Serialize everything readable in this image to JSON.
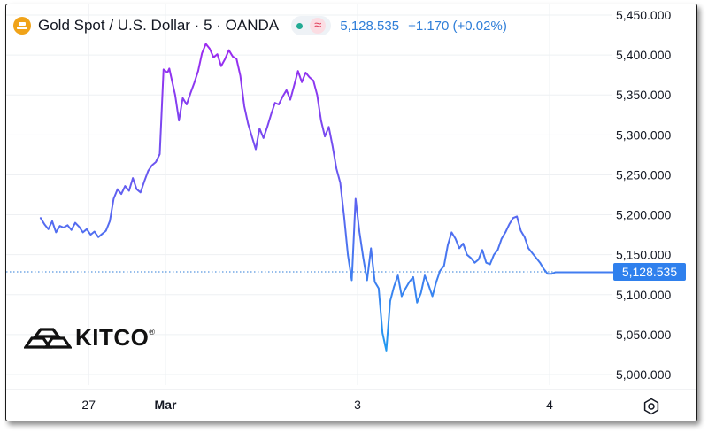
{
  "header": {
    "symbol_icon": "gold-bar-coin-icon",
    "title": "Gold Spot / U.S. Dollar · 5 · OANDA",
    "status_icon": "market-open-dot",
    "indicator_icon": "wave-icon",
    "indicator_symbol": "≈",
    "price": "5,128.535",
    "change": "+1.170 (+0.02%)"
  },
  "logo": {
    "text": "KITCO",
    "registered": "®"
  },
  "colors": {
    "line_top": "#9b2bf0",
    "line_bottom": "#1e9cf0",
    "price_line": "#2f7ed8",
    "price_tag": "#2f80ed",
    "grid": "#eef0f3",
    "axis_text": "#131722"
  },
  "chart_data": {
    "type": "line",
    "title": "Gold Spot / U.S. Dollar · 5 · OANDA",
    "xlabel": "",
    "ylabel": "",
    "ylim": [
      4990,
      5460
    ],
    "grid": true,
    "y_ticks": [
      "5,000.000",
      "5,050.000",
      "5,100.000",
      "5,150.000",
      "5,200.000",
      "5,250.000",
      "5,300.000",
      "5,350.000",
      "5,400.000",
      "5,450.000"
    ],
    "y_tick_values": [
      5000,
      5050,
      5100,
      5150,
      5200,
      5250,
      5300,
      5350,
      5400,
      5450
    ],
    "x_ticks": [
      "27",
      "Mar",
      "3",
      "4"
    ],
    "x_tick_values": [
      0.6,
      1.0,
      2.0,
      3.0
    ],
    "last_price_label": "5,128.535",
    "last_price": 5128.535,
    "x_range": [
      0.35,
      3.66
    ],
    "series": [
      {
        "name": "",
        "x": [
          0.35,
          0.37,
          0.39,
          0.41,
          0.43,
          0.45,
          0.47,
          0.49,
          0.51,
          0.53,
          0.55,
          0.57,
          0.59,
          0.61,
          0.63,
          0.65,
          0.67,
          0.69,
          0.71,
          0.73,
          0.75,
          0.77,
          0.79,
          0.81,
          0.83,
          0.85,
          0.87,
          0.89,
          0.91,
          0.93,
          0.95,
          0.97,
          0.99,
          1.01,
          1.02,
          1.03,
          1.05,
          1.07,
          1.09,
          1.11,
          1.13,
          1.15,
          1.17,
          1.19,
          1.21,
          1.23,
          1.25,
          1.27,
          1.29,
          1.31,
          1.33,
          1.35,
          1.37,
          1.39,
          1.41,
          1.43,
          1.45,
          1.47,
          1.49,
          1.51,
          1.53,
          1.55,
          1.57,
          1.59,
          1.61,
          1.63,
          1.65,
          1.67,
          1.69,
          1.71,
          1.73,
          1.75,
          1.77,
          1.79,
          1.81,
          1.83,
          1.85,
          1.87,
          1.89,
          1.91,
          1.93,
          1.95,
          1.97,
          1.99,
          2.01,
          2.03,
          2.05,
          2.07,
          2.09,
          2.11,
          2.13,
          2.15,
          2.17,
          2.19,
          2.21,
          2.23,
          2.25,
          2.27,
          2.29,
          2.31,
          2.33,
          2.35,
          2.37,
          2.39,
          2.41,
          2.43,
          2.45,
          2.47,
          2.49,
          2.51,
          2.53,
          2.55,
          2.57,
          2.59,
          2.61,
          2.63,
          2.65,
          2.67,
          2.69,
          2.71,
          2.73,
          2.75,
          2.77,
          2.79,
          2.81,
          2.83,
          2.85,
          2.87,
          2.89,
          2.91,
          2.93,
          2.95,
          2.97,
          2.99,
          3.01,
          3.03,
          3.05,
          3.07,
          3.09,
          3.11,
          3.13,
          3.15,
          3.17,
          3.19,
          3.21,
          3.23,
          3.25,
          3.27,
          3.29,
          3.31,
          3.33,
          3.35,
          3.37,
          3.39,
          3.41,
          3.43,
          3.45,
          3.47,
          3.49,
          3.51,
          3.53,
          3.55,
          3.57,
          3.59,
          3.61,
          3.63,
          3.65,
          3.66
        ],
        "values": [
          5196,
          5188,
          5182,
          5192,
          5178,
          5186,
          5184,
          5187,
          5181,
          5190,
          5185,
          5178,
          5182,
          5175,
          5179,
          5172,
          5176,
          5180,
          5192,
          5220,
          5232,
          5226,
          5236,
          5230,
          5246,
          5232,
          5228,
          5242,
          5255,
          5262,
          5266,
          5276,
          5382,
          5378,
          5383,
          5372,
          5350,
          5318,
          5346,
          5338,
          5352,
          5365,
          5380,
          5402,
          5414,
          5408,
          5397,
          5401,
          5386,
          5395,
          5406,
          5398,
          5395,
          5374,
          5336,
          5314,
          5298,
          5282,
          5308,
          5296,
          5310,
          5326,
          5340,
          5338,
          5348,
          5356,
          5344,
          5362,
          5380,
          5366,
          5378,
          5372,
          5368,
          5350,
          5318,
          5298,
          5310,
          5286,
          5258,
          5240,
          5198,
          5150,
          5118,
          5220,
          5178,
          5146,
          5118,
          5158,
          5116,
          5108,
          5052,
          5030,
          5092,
          5110,
          5124,
          5098,
          5108,
          5116,
          5122,
          5090,
          5102,
          5124,
          5112,
          5098,
          5116,
          5130,
          5136,
          5162,
          5178,
          5170,
          5158,
          5164,
          5150,
          5146,
          5140,
          5144,
          5156,
          5140,
          5138,
          5150,
          5156,
          5170,
          5178,
          5188,
          5196,
          5198,
          5180,
          5172,
          5158,
          5152,
          5146,
          5140,
          5132,
          5126,
          5126,
          5128,
          5128,
          5128,
          5128,
          5128,
          5128,
          5128,
          5128,
          5128,
          5128,
          5128,
          5128,
          5128,
          5128,
          5128,
          5128,
          5128,
          5128,
          5128,
          5128,
          5128,
          5128,
          5128,
          5128,
          5128,
          5128,
          5128,
          5128,
          5128,
          5128,
          5128,
          5128,
          5128.535
        ]
      }
    ]
  }
}
